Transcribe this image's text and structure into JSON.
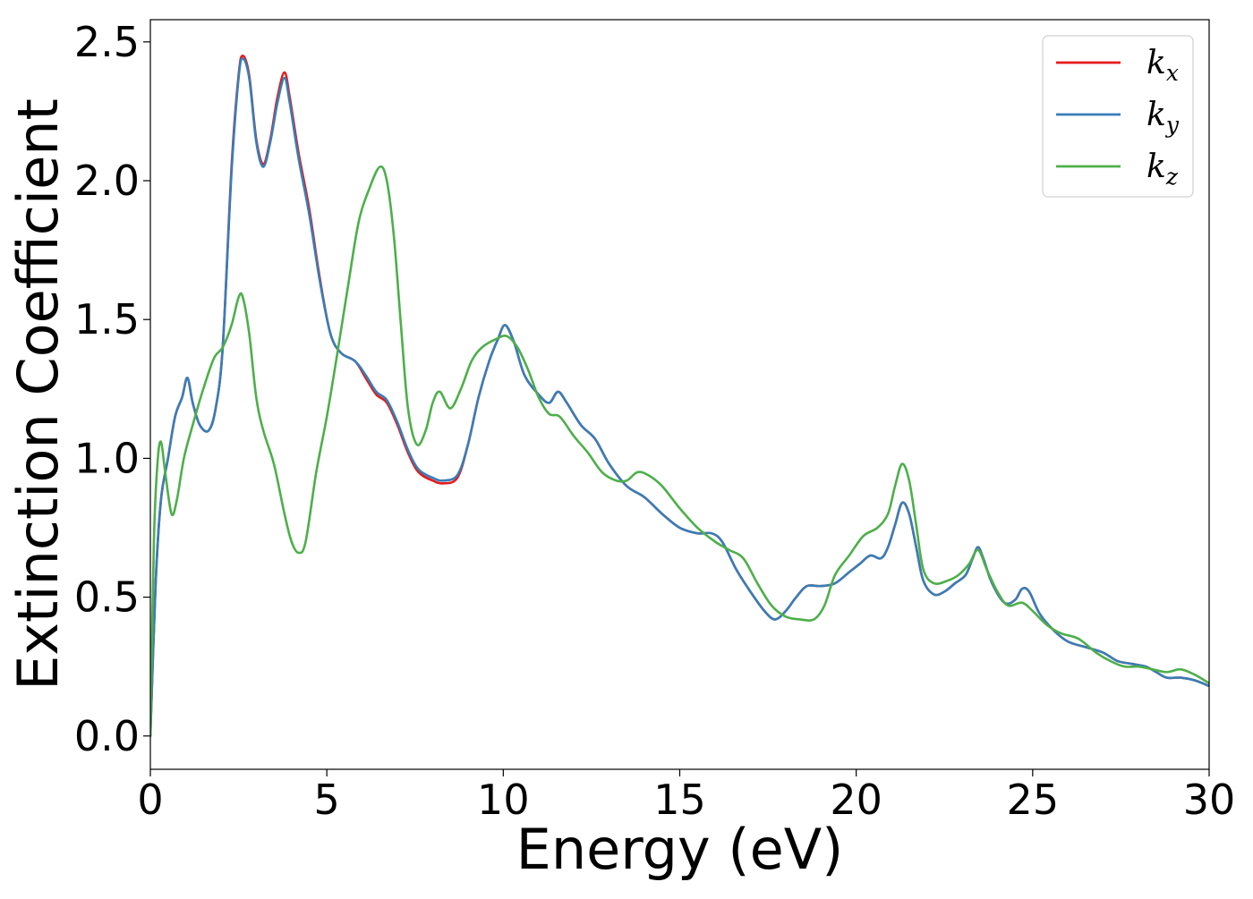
{
  "chart_data": {
    "type": "line",
    "xlabel": "Energy (eV)",
    "ylabel": "Extinction Coefficient",
    "xlim": [
      0,
      30
    ],
    "ylim": [
      -0.12,
      2.58
    ],
    "xticks": [
      0,
      5,
      10,
      15,
      20,
      25,
      30
    ],
    "xtick_labels": [
      "0",
      "5",
      "10",
      "15",
      "20",
      "25",
      "30"
    ],
    "yticks": [
      0.0,
      0.5,
      1.0,
      1.5,
      2.0,
      2.5
    ],
    "ytick_labels": [
      "0.0",
      "0.5",
      "1.0",
      "1.5",
      "2.0",
      "2.5"
    ],
    "grid": false,
    "legend_position": "top-right",
    "series": [
      {
        "name": "k_x",
        "legend_base": "k",
        "legend_sub": "x",
        "color": "#e41a1c",
        "points": [
          [
            0,
            0
          ],
          [
            0.15,
            0.55
          ],
          [
            0.3,
            0.85
          ],
          [
            0.5,
            1.0
          ],
          [
            0.7,
            1.15
          ],
          [
            0.9,
            1.22
          ],
          [
            1.05,
            1.29
          ],
          [
            1.2,
            1.2
          ],
          [
            1.4,
            1.12
          ],
          [
            1.65,
            1.1
          ],
          [
            1.85,
            1.18
          ],
          [
            2.05,
            1.4
          ],
          [
            2.3,
            2.05
          ],
          [
            2.5,
            2.38
          ],
          [
            2.62,
            2.45
          ],
          [
            2.8,
            2.38
          ],
          [
            3.0,
            2.15
          ],
          [
            3.2,
            2.06
          ],
          [
            3.4,
            2.15
          ],
          [
            3.6,
            2.3
          ],
          [
            3.8,
            2.39
          ],
          [
            3.95,
            2.3
          ],
          [
            4.2,
            2.1
          ],
          [
            4.5,
            1.9
          ],
          [
            4.8,
            1.65
          ],
          [
            5.1,
            1.45
          ],
          [
            5.4,
            1.38
          ],
          [
            5.8,
            1.35
          ],
          [
            6.1,
            1.29
          ],
          [
            6.4,
            1.23
          ],
          [
            6.7,
            1.2
          ],
          [
            7.0,
            1.12
          ],
          [
            7.3,
            1.02
          ],
          [
            7.6,
            0.95
          ],
          [
            8.0,
            0.92
          ],
          [
            8.3,
            0.91
          ],
          [
            8.7,
            0.93
          ],
          [
            9.0,
            1.05
          ],
          [
            9.3,
            1.22
          ],
          [
            9.6,
            1.35
          ],
          [
            9.85,
            1.43
          ],
          [
            10.05,
            1.48
          ],
          [
            10.3,
            1.42
          ],
          [
            10.6,
            1.3
          ],
          [
            11.0,
            1.23
          ],
          [
            11.3,
            1.2
          ],
          [
            11.55,
            1.24
          ],
          [
            11.8,
            1.2
          ],
          [
            12.2,
            1.12
          ],
          [
            12.6,
            1.07
          ],
          [
            13.0,
            0.98
          ],
          [
            13.5,
            0.9
          ],
          [
            14.0,
            0.86
          ],
          [
            14.5,
            0.8
          ],
          [
            15.0,
            0.75
          ],
          [
            15.5,
            0.73
          ],
          [
            15.9,
            0.73
          ],
          [
            16.2,
            0.7
          ],
          [
            16.6,
            0.6
          ],
          [
            17.0,
            0.52
          ],
          [
            17.4,
            0.45
          ],
          [
            17.7,
            0.42
          ],
          [
            18.0,
            0.45
          ],
          [
            18.3,
            0.5
          ],
          [
            18.6,
            0.54
          ],
          [
            19.0,
            0.54
          ],
          [
            19.4,
            0.55
          ],
          [
            19.8,
            0.59
          ],
          [
            20.1,
            0.62
          ],
          [
            20.4,
            0.65
          ],
          [
            20.7,
            0.64
          ],
          [
            20.9,
            0.68
          ],
          [
            21.1,
            0.76
          ],
          [
            21.3,
            0.84
          ],
          [
            21.5,
            0.8
          ],
          [
            21.7,
            0.68
          ],
          [
            21.9,
            0.56
          ],
          [
            22.2,
            0.51
          ],
          [
            22.5,
            0.52
          ],
          [
            22.8,
            0.55
          ],
          [
            23.1,
            0.58
          ],
          [
            23.3,
            0.64
          ],
          [
            23.45,
            0.68
          ],
          [
            23.6,
            0.64
          ],
          [
            23.85,
            0.55
          ],
          [
            24.2,
            0.48
          ],
          [
            24.5,
            0.49
          ],
          [
            24.7,
            0.53
          ],
          [
            24.9,
            0.52
          ],
          [
            25.2,
            0.44
          ],
          [
            25.6,
            0.38
          ],
          [
            26.0,
            0.34
          ],
          [
            26.5,
            0.32
          ],
          [
            27.0,
            0.3
          ],
          [
            27.4,
            0.27
          ],
          [
            27.8,
            0.26
          ],
          [
            28.2,
            0.25
          ],
          [
            28.5,
            0.23
          ],
          [
            28.8,
            0.21
          ],
          [
            29.2,
            0.21
          ],
          [
            29.6,
            0.2
          ],
          [
            30.0,
            0.18
          ]
        ]
      },
      {
        "name": "k_y",
        "legend_base": "k",
        "legend_sub": "y",
        "color": "#377eb8",
        "points": [
          [
            0,
            0
          ],
          [
            0.15,
            0.55
          ],
          [
            0.3,
            0.85
          ],
          [
            0.5,
            1.0
          ],
          [
            0.7,
            1.15
          ],
          [
            0.9,
            1.22
          ],
          [
            1.05,
            1.29
          ],
          [
            1.2,
            1.2
          ],
          [
            1.4,
            1.12
          ],
          [
            1.65,
            1.1
          ],
          [
            1.85,
            1.18
          ],
          [
            2.05,
            1.4
          ],
          [
            2.3,
            2.03
          ],
          [
            2.5,
            2.37
          ],
          [
            2.62,
            2.44
          ],
          [
            2.8,
            2.37
          ],
          [
            3.0,
            2.14
          ],
          [
            3.2,
            2.05
          ],
          [
            3.4,
            2.14
          ],
          [
            3.6,
            2.28
          ],
          [
            3.8,
            2.37
          ],
          [
            3.95,
            2.28
          ],
          [
            4.2,
            2.08
          ],
          [
            4.5,
            1.88
          ],
          [
            4.8,
            1.64
          ],
          [
            5.1,
            1.45
          ],
          [
            5.4,
            1.38
          ],
          [
            5.8,
            1.35
          ],
          [
            6.1,
            1.3
          ],
          [
            6.4,
            1.24
          ],
          [
            6.7,
            1.21
          ],
          [
            7.0,
            1.13
          ],
          [
            7.3,
            1.03
          ],
          [
            7.6,
            0.96
          ],
          [
            8.0,
            0.93
          ],
          [
            8.3,
            0.92
          ],
          [
            8.7,
            0.94
          ],
          [
            9.0,
            1.05
          ],
          [
            9.3,
            1.22
          ],
          [
            9.6,
            1.35
          ],
          [
            9.85,
            1.43
          ],
          [
            10.05,
            1.48
          ],
          [
            10.3,
            1.42
          ],
          [
            10.6,
            1.3
          ],
          [
            11.0,
            1.23
          ],
          [
            11.3,
            1.2
          ],
          [
            11.55,
            1.24
          ],
          [
            11.8,
            1.2
          ],
          [
            12.2,
            1.12
          ],
          [
            12.6,
            1.07
          ],
          [
            13.0,
            0.98
          ],
          [
            13.5,
            0.9
          ],
          [
            14.0,
            0.86
          ],
          [
            14.5,
            0.8
          ],
          [
            15.0,
            0.75
          ],
          [
            15.5,
            0.73
          ],
          [
            15.9,
            0.73
          ],
          [
            16.2,
            0.7
          ],
          [
            16.6,
            0.6
          ],
          [
            17.0,
            0.52
          ],
          [
            17.4,
            0.45
          ],
          [
            17.7,
            0.42
          ],
          [
            18.0,
            0.45
          ],
          [
            18.3,
            0.5
          ],
          [
            18.6,
            0.54
          ],
          [
            19.0,
            0.54
          ],
          [
            19.4,
            0.55
          ],
          [
            19.8,
            0.59
          ],
          [
            20.1,
            0.62
          ],
          [
            20.4,
            0.65
          ],
          [
            20.7,
            0.64
          ],
          [
            20.9,
            0.68
          ],
          [
            21.1,
            0.76
          ],
          [
            21.3,
            0.84
          ],
          [
            21.5,
            0.8
          ],
          [
            21.7,
            0.68
          ],
          [
            21.9,
            0.56
          ],
          [
            22.2,
            0.51
          ],
          [
            22.5,
            0.52
          ],
          [
            22.8,
            0.55
          ],
          [
            23.1,
            0.58
          ],
          [
            23.3,
            0.64
          ],
          [
            23.45,
            0.68
          ],
          [
            23.6,
            0.64
          ],
          [
            23.85,
            0.55
          ],
          [
            24.2,
            0.48
          ],
          [
            24.5,
            0.49
          ],
          [
            24.7,
            0.53
          ],
          [
            24.9,
            0.52
          ],
          [
            25.2,
            0.44
          ],
          [
            25.6,
            0.38
          ],
          [
            26.0,
            0.34
          ],
          [
            26.5,
            0.32
          ],
          [
            27.0,
            0.3
          ],
          [
            27.4,
            0.27
          ],
          [
            27.8,
            0.26
          ],
          [
            28.2,
            0.25
          ],
          [
            28.5,
            0.23
          ],
          [
            28.8,
            0.21
          ],
          [
            29.2,
            0.21
          ],
          [
            29.6,
            0.2
          ],
          [
            30.0,
            0.18
          ]
        ]
      },
      {
        "name": "k_z",
        "legend_base": "k",
        "legend_sub": "z",
        "color": "#4daf4a",
        "points": [
          [
            0,
            0
          ],
          [
            0.1,
            0.7
          ],
          [
            0.2,
            0.98
          ],
          [
            0.3,
            1.06
          ],
          [
            0.42,
            0.95
          ],
          [
            0.6,
            0.8
          ],
          [
            0.75,
            0.85
          ],
          [
            0.95,
            1.0
          ],
          [
            1.2,
            1.12
          ],
          [
            1.5,
            1.25
          ],
          [
            1.8,
            1.36
          ],
          [
            2.05,
            1.4
          ],
          [
            2.3,
            1.48
          ],
          [
            2.5,
            1.58
          ],
          [
            2.62,
            1.58
          ],
          [
            2.8,
            1.45
          ],
          [
            3.0,
            1.22
          ],
          [
            3.2,
            1.1
          ],
          [
            3.5,
            0.98
          ],
          [
            3.8,
            0.8
          ],
          [
            4.0,
            0.7
          ],
          [
            4.2,
            0.66
          ],
          [
            4.4,
            0.7
          ],
          [
            4.7,
            0.95
          ],
          [
            5.0,
            1.15
          ],
          [
            5.3,
            1.38
          ],
          [
            5.6,
            1.62
          ],
          [
            5.9,
            1.85
          ],
          [
            6.2,
            1.97
          ],
          [
            6.5,
            2.05
          ],
          [
            6.7,
            2.0
          ],
          [
            6.9,
            1.8
          ],
          [
            7.1,
            1.48
          ],
          [
            7.3,
            1.18
          ],
          [
            7.55,
            1.05
          ],
          [
            7.8,
            1.1
          ],
          [
            8.0,
            1.2
          ],
          [
            8.2,
            1.24
          ],
          [
            8.5,
            1.18
          ],
          [
            8.8,
            1.25
          ],
          [
            9.1,
            1.35
          ],
          [
            9.4,
            1.4
          ],
          [
            9.8,
            1.43
          ],
          [
            10.1,
            1.44
          ],
          [
            10.4,
            1.4
          ],
          [
            10.7,
            1.32
          ],
          [
            11.0,
            1.22
          ],
          [
            11.3,
            1.16
          ],
          [
            11.6,
            1.15
          ],
          [
            12.0,
            1.08
          ],
          [
            12.4,
            1.02
          ],
          [
            12.8,
            0.95
          ],
          [
            13.2,
            0.92
          ],
          [
            13.5,
            0.92
          ],
          [
            13.8,
            0.95
          ],
          [
            14.1,
            0.94
          ],
          [
            14.5,
            0.9
          ],
          [
            15.0,
            0.82
          ],
          [
            15.5,
            0.75
          ],
          [
            16.0,
            0.7
          ],
          [
            16.4,
            0.67
          ],
          [
            16.8,
            0.64
          ],
          [
            17.2,
            0.55
          ],
          [
            17.6,
            0.47
          ],
          [
            18.0,
            0.43
          ],
          [
            18.4,
            0.42
          ],
          [
            18.8,
            0.42
          ],
          [
            19.1,
            0.47
          ],
          [
            19.4,
            0.58
          ],
          [
            19.8,
            0.65
          ],
          [
            20.2,
            0.72
          ],
          [
            20.6,
            0.75
          ],
          [
            20.9,
            0.8
          ],
          [
            21.1,
            0.9
          ],
          [
            21.3,
            0.98
          ],
          [
            21.5,
            0.92
          ],
          [
            21.7,
            0.76
          ],
          [
            21.9,
            0.6
          ],
          [
            22.2,
            0.55
          ],
          [
            22.6,
            0.56
          ],
          [
            22.9,
            0.58
          ],
          [
            23.2,
            0.62
          ],
          [
            23.45,
            0.67
          ],
          [
            23.7,
            0.6
          ],
          [
            24.0,
            0.52
          ],
          [
            24.3,
            0.47
          ],
          [
            24.7,
            0.48
          ],
          [
            25.0,
            0.45
          ],
          [
            25.4,
            0.4
          ],
          [
            25.8,
            0.37
          ],
          [
            26.3,
            0.35
          ],
          [
            26.8,
            0.3
          ],
          [
            27.2,
            0.27
          ],
          [
            27.6,
            0.25
          ],
          [
            28.0,
            0.25
          ],
          [
            28.4,
            0.24
          ],
          [
            28.8,
            0.23
          ],
          [
            29.2,
            0.24
          ],
          [
            29.6,
            0.22
          ],
          [
            30.0,
            0.19
          ]
        ]
      }
    ]
  }
}
